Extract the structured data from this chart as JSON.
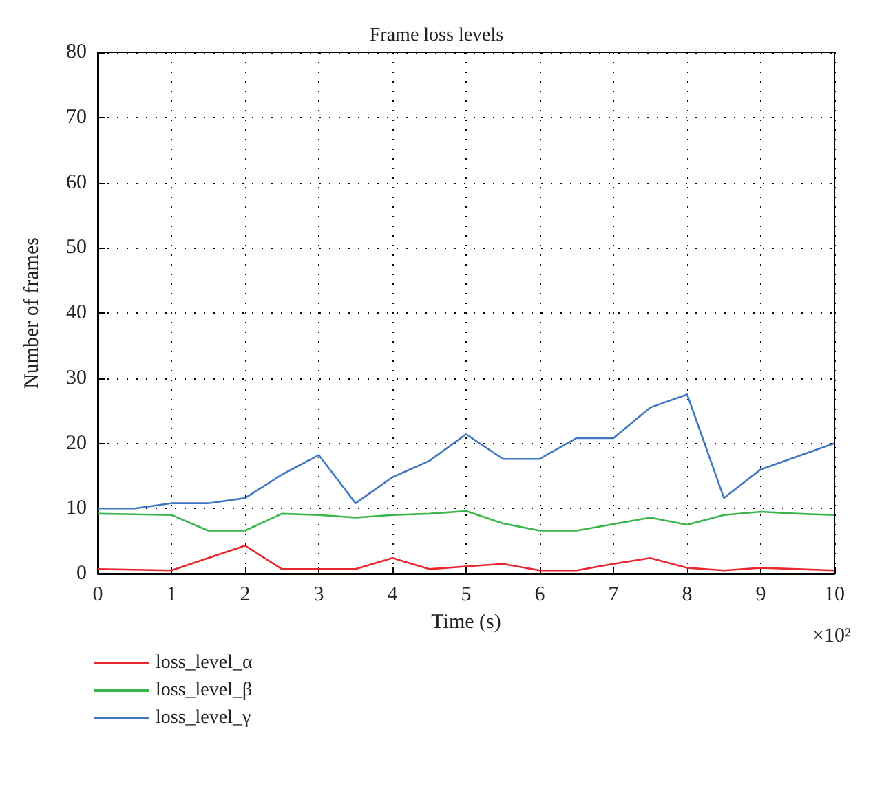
{
  "chart_data": {
    "type": "line",
    "title": "Frame loss levels",
    "xlabel": "Time (s)",
    "ylabel": "Number of frames",
    "annotations": [
      "×10²"
    ],
    "x": [
      0,
      0.5,
      1,
      1.5,
      2,
      2.5,
      3,
      3.5,
      4,
      4.5,
      5,
      5.5,
      6,
      6.5,
      7,
      7.5,
      8,
      8.5,
      9,
      9.5,
      10
    ],
    "series": [
      {
        "name": "loss_level_α",
        "color": "#e8262b",
        "values": [
          0.7,
          0.6,
          0.5,
          2.4,
          4.3,
          0.7,
          0.7,
          0.7,
          2.4,
          0.7,
          1.1,
          1.5,
          0.5,
          0.5,
          1.5,
          2.4,
          0.9,
          0.5,
          0.9,
          0.7,
          0.5
        ]
      },
      {
        "name": "loss_level_β",
        "color": "#3ab54a",
        "values": [
          9.2,
          9.1,
          9,
          6.6,
          6.6,
          9.2,
          9,
          8.6,
          9,
          9.2,
          9.6,
          7.7,
          6.6,
          6.6,
          7.6,
          8.6,
          7.5,
          9,
          9.5,
          9.2,
          9
        ]
      },
      {
        "name": "loss_level_γ",
        "color": "#3f78c1",
        "values": [
          10,
          10,
          10.8,
          10.8,
          11.6,
          15.2,
          18.2,
          10.8,
          14.8,
          17.3,
          21.4,
          17.6,
          17.6,
          20.8,
          20.8,
          25.5,
          27.5,
          11.6,
          16,
          18,
          20
        ]
      }
    ],
    "xlim": [
      0,
      10
    ],
    "xticks": [
      0,
      1,
      2,
      3,
      4,
      5,
      6,
      7,
      8,
      9,
      10
    ],
    "ylim": [
      0,
      80
    ],
    "yticks": [
      0,
      10,
      20,
      30,
      40,
      50,
      60,
      70,
      80
    ],
    "grid": true,
    "legend": "bottom left",
    "marker": "none",
    "line_style": "solid"
  }
}
